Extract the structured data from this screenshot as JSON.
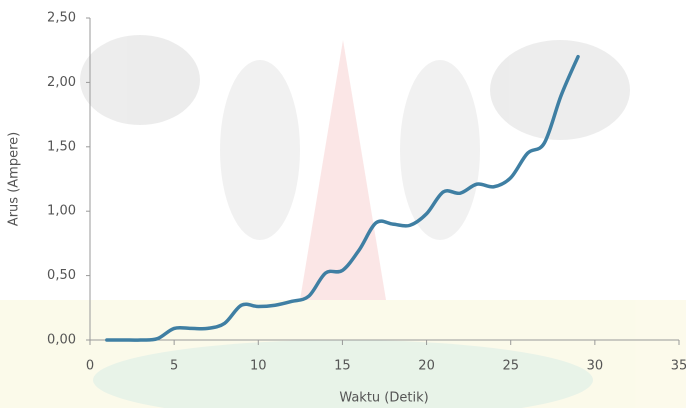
{
  "chart_data": {
    "type": "line",
    "x_label": "Waktu (Detik)",
    "y_label": "Arus (Ampere)",
    "x": [
      1,
      2,
      3,
      4,
      5,
      6,
      7,
      8,
      9,
      10,
      11,
      12,
      13,
      14,
      15,
      16,
      17,
      18,
      19,
      20,
      21,
      22,
      23,
      24,
      25,
      26,
      27,
      28,
      29
    ],
    "series": [
      {
        "color": "#3f7fa3",
        "values": [
          0,
          0,
          0,
          0.01,
          0.09,
          0.09,
          0.09,
          0.13,
          0.27,
          0.26,
          0.27,
          0.3,
          0.34,
          0.52,
          0.54,
          0.7,
          0.91,
          0.9,
          0.89,
          0.98,
          1.15,
          1.14,
          1.21,
          1.19,
          1.26,
          1.45,
          1.53,
          1.9,
          2.2
        ]
      }
    ],
    "xlim": [
      0,
      35
    ],
    "xticks": [
      0,
      5,
      10,
      15,
      20,
      25,
      30,
      35
    ],
    "ylim": [
      0,
      2.5
    ],
    "yticks": [
      {
        "value": 0,
        "label": "0,00"
      },
      {
        "value": 0.5,
        "label": "0,50"
      },
      {
        "value": 1,
        "label": "1,00"
      },
      {
        "value": 1.5,
        "label": "1,50"
      },
      {
        "value": 2,
        "label": "2,00"
      },
      {
        "value": 2.5,
        "label": "2,50"
      }
    ],
    "grid": false
  }
}
